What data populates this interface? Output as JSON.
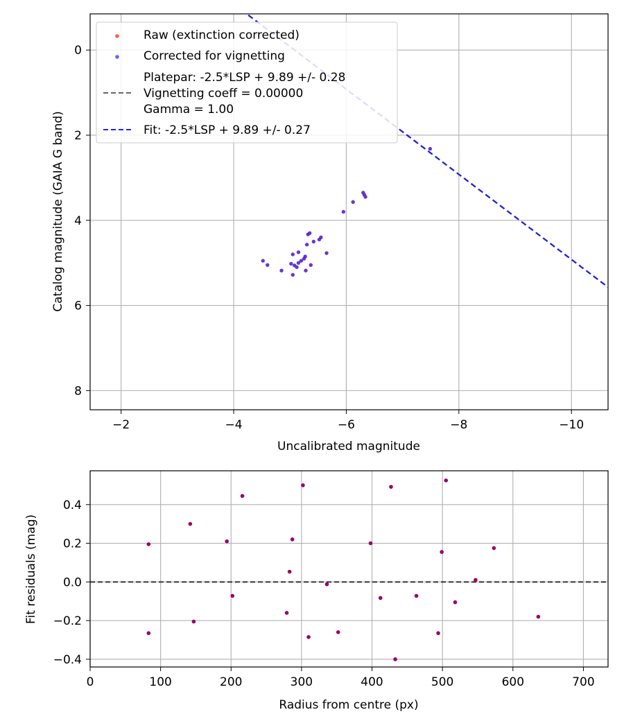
{
  "chart_data": [
    {
      "type": "scatter",
      "xlabel": "Uncalibrated magnitude",
      "ylabel": "Catalog magnitude (GAIA G band)",
      "xlim": [
        -1.45,
        -10.65
      ],
      "ylim": [
        8.45,
        -0.85
      ],
      "x_inverted": true,
      "y_inverted": true,
      "grid": true,
      "xticks": [
        -2,
        -4,
        -6,
        -8,
        -10
      ],
      "xtick_labels": [
        "−2",
        "−4",
        "−6",
        "−8",
        "−10"
      ],
      "yticks": [
        0,
        2,
        4,
        6,
        8
      ],
      "ytick_labels": [
        "0",
        "2",
        "4",
        "6",
        "8"
      ],
      "legend_position": "upper-left",
      "legend": [
        {
          "label": "Raw (extinction corrected)",
          "marker": "dot",
          "color": "#ff4040"
        },
        {
          "label": "Corrected for vignetting",
          "marker": "dot",
          "color": "#4a4aff"
        },
        {
          "label": "Platepar: -2.5*LSP + 9.89 +/- 0.28",
          "marker": "none",
          "color": "#555555"
        },
        {
          "label": "Vignetting coeff = 0.00000",
          "marker": "dash",
          "color": "#555555"
        },
        {
          "label": "Gamma = 1.00",
          "marker": "none",
          "color": "#555555"
        },
        {
          "label": "Fit: -2.5*LSP + 9.89 +/- 0.27",
          "marker": "dash",
          "color": "#2222ee"
        }
      ],
      "lines": [
        {
          "name": "Platepar",
          "slope": -2.5,
          "intercept": 9.89,
          "color": "#666666",
          "dash": true
        },
        {
          "name": "Fit",
          "slope": -2.5,
          "intercept": 9.89,
          "color": "#2222dd",
          "dash": true
        }
      ],
      "point_color": "#5522cc",
      "points": [
        [
          -4.52,
          4.95
        ],
        [
          -4.6,
          5.05
        ],
        [
          -4.85,
          5.18
        ],
        [
          -5.05,
          4.8
        ],
        [
          -5.02,
          5.02
        ],
        [
          -5.05,
          5.28
        ],
        [
          -5.08,
          5.06
        ],
        [
          -5.12,
          5.1
        ],
        [
          -5.15,
          5.0
        ],
        [
          -5.15,
          4.75
        ],
        [
          -5.2,
          4.95
        ],
        [
          -5.25,
          4.9
        ],
        [
          -5.28,
          5.18
        ],
        [
          -5.27,
          4.85
        ],
        [
          -5.3,
          4.57
        ],
        [
          -5.32,
          4.33
        ],
        [
          -5.35,
          4.3
        ],
        [
          -5.37,
          5.05
        ],
        [
          -5.42,
          4.5
        ],
        [
          -5.52,
          4.45
        ],
        [
          -5.55,
          4.4
        ],
        [
          -5.65,
          4.77
        ],
        [
          -5.95,
          3.8
        ],
        [
          -6.12,
          3.57
        ],
        [
          -6.3,
          3.35
        ],
        [
          -6.32,
          3.4
        ],
        [
          -6.34,
          3.45
        ],
        [
          -7.49,
          2.32
        ]
      ]
    },
    {
      "type": "scatter",
      "xlabel": "Radius from centre (px)",
      "ylabel": "Fit residuals (mag)",
      "xlim": [
        0,
        735
      ],
      "ylim": [
        -0.44,
        0.575
      ],
      "grid": true,
      "xticks": [
        0,
        100,
        200,
        300,
        400,
        500,
        600,
        700
      ],
      "xtick_labels": [
        "0",
        "100",
        "200",
        "300",
        "400",
        "500",
        "600",
        "700"
      ],
      "yticks": [
        -0.4,
        -0.2,
        0.0,
        0.2,
        0.4
      ],
      "ytick_labels": [
        "−0.4",
        "−0.2",
        "0.0",
        "0.2",
        "0.4"
      ],
      "zero_line": true,
      "point_color": "#990066",
      "points": [
        [
          83,
          0.195
        ],
        [
          83,
          -0.265
        ],
        [
          142,
          0.3
        ],
        [
          147,
          -0.205
        ],
        [
          194,
          0.21
        ],
        [
          202,
          -0.072
        ],
        [
          216,
          0.445
        ],
        [
          279,
          -0.16
        ],
        [
          283,
          0.053
        ],
        [
          287,
          0.22
        ],
        [
          302,
          0.5
        ],
        [
          310,
          -0.285
        ],
        [
          336,
          -0.012
        ],
        [
          352,
          -0.26
        ],
        [
          398,
          0.2
        ],
        [
          412,
          -0.083
        ],
        [
          427,
          0.492
        ],
        [
          433,
          -0.4
        ],
        [
          463,
          -0.072
        ],
        [
          494,
          -0.265
        ],
        [
          499,
          0.155
        ],
        [
          505,
          0.525
        ],
        [
          518,
          -0.105
        ],
        [
          547,
          0.01
        ],
        [
          573,
          0.175
        ],
        [
          636,
          -0.18
        ]
      ]
    }
  ]
}
